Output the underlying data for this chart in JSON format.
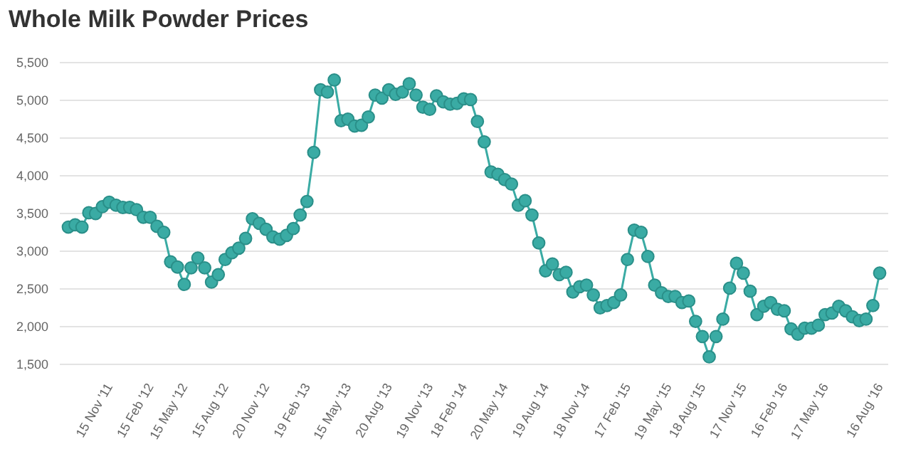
{
  "chart_data": {
    "type": "line",
    "title": "Whole Milk Powder Prices",
    "categories": [
      null,
      null,
      null,
      null,
      null,
      null,
      "15 Nov '11",
      null,
      null,
      null,
      null,
      null,
      "15 Feb '12",
      null,
      null,
      null,
      null,
      "15 May '12",
      null,
      null,
      null,
      null,
      null,
      "15 Aug '12",
      null,
      null,
      null,
      null,
      null,
      "20 Nov '12",
      null,
      null,
      null,
      null,
      null,
      "19 Feb '13",
      null,
      null,
      null,
      null,
      null,
      "15 May '13",
      null,
      null,
      null,
      null,
      null,
      "20 Aug '13",
      null,
      null,
      null,
      null,
      null,
      "19 Nov '13",
      null,
      null,
      null,
      null,
      "18 Feb '14",
      null,
      null,
      null,
      null,
      null,
      "20 May '14",
      null,
      null,
      null,
      null,
      null,
      "19 Aug '14",
      null,
      null,
      null,
      null,
      null,
      "18 Nov '14",
      null,
      null,
      null,
      null,
      null,
      "17 Feb '15",
      null,
      null,
      null,
      null,
      null,
      "19 May '15",
      null,
      null,
      null,
      null,
      "18 Aug '15",
      null,
      null,
      null,
      null,
      null,
      "17 Nov '15",
      null,
      null,
      null,
      null,
      null,
      "16 Feb '16",
      null,
      null,
      null,
      null,
      null,
      "17 May '16",
      null,
      null,
      null,
      null,
      null,
      null,
      null,
      "16 Aug '16"
    ],
    "series": [
      {
        "color": "#3aaba4",
        "values": [
          3320,
          3350,
          3320,
          3510,
          3500,
          3590,
          3650,
          3610,
          3580,
          3580,
          3550,
          3450,
          3450,
          3330,
          3250,
          2860,
          2790,
          2560,
          2780,
          2910,
          2780,
          2590,
          2690,
          2890,
          2980,
          3040,
          3170,
          3430,
          3370,
          3290,
          3190,
          3160,
          3210,
          3300,
          3480,
          3660,
          4310,
          5140,
          5110,
          5270,
          4730,
          4750,
          4660,
          4670,
          4780,
          5070,
          5030,
          5140,
          5080,
          5110,
          5220,
          5070,
          4910,
          4880,
          5060,
          4980,
          4950,
          4960,
          5020,
          5010,
          4720,
          4450,
          4050,
          4020,
          3950,
          3890,
          3610,
          3670,
          3480,
          3110,
          2740,
          2830,
          2690,
          2720,
          2460,
          2530,
          2550,
          2420,
          2250,
          2280,
          2320,
          2420,
          2890,
          3280,
          3250,
          2930,
          2550,
          2450,
          2400,
          2400,
          2320,
          2340,
          2070,
          1870,
          1600,
          1870,
          2100,
          2510,
          2840,
          2710,
          2470,
          2160,
          2270,
          2320,
          2230,
          2210,
          1970,
          1900,
          1980,
          1980,
          2020,
          2160,
          2180,
          2270,
          2210,
          2130,
          2080,
          2100,
          2280,
          2710
        ]
      }
    ],
    "ylim": [
      1500,
      5500
    ],
    "yticks": [
      {
        "value": 1500,
        "label": "1,500"
      },
      {
        "value": 2000,
        "label": "2,000"
      },
      {
        "value": 2500,
        "label": "2,500"
      },
      {
        "value": 3000,
        "label": "3,000"
      },
      {
        "value": 3500,
        "label": "3,500"
      },
      {
        "value": 4000,
        "label": "4,000"
      },
      {
        "value": 4500,
        "label": "4,500"
      },
      {
        "value": 5000,
        "label": "5,000"
      },
      {
        "value": 5500,
        "label": "5,500"
      }
    ],
    "grid": "y",
    "marker": "circle",
    "line_style": "solid",
    "legend": false
  }
}
